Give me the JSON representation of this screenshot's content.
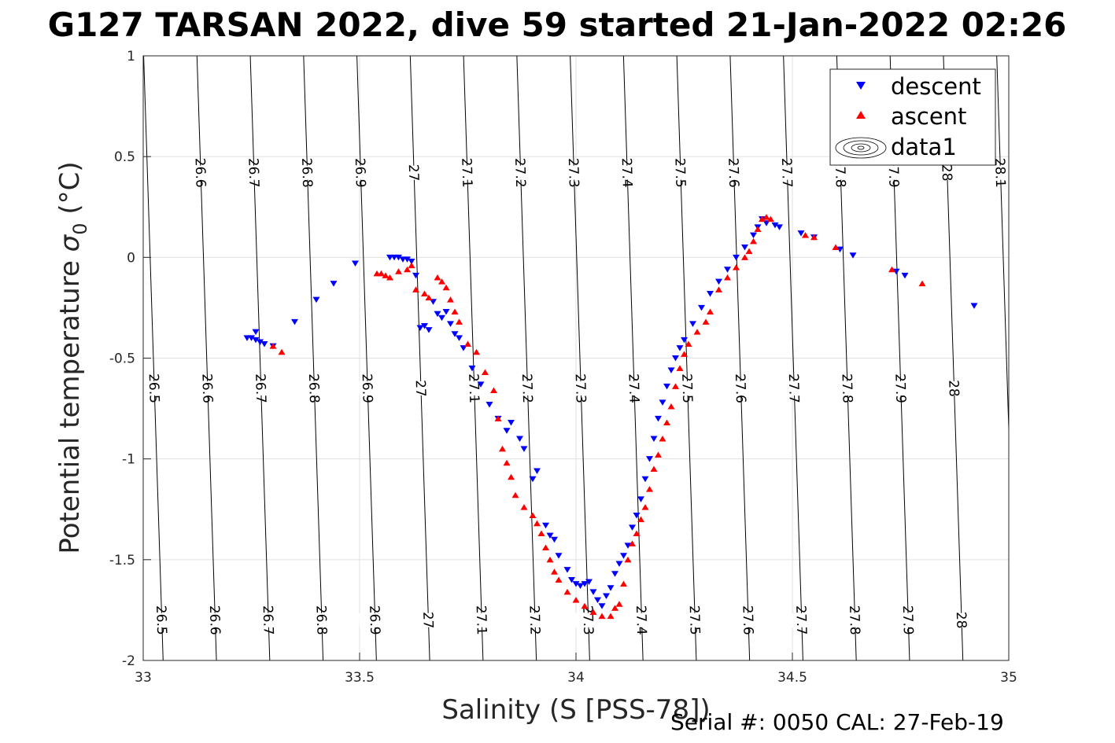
{
  "title": "G127 TARSAN 2022, dive 59 started 21-Jan-2022 02:26",
  "footer": "Serial #: 0050  CAL: 27-Feb-19",
  "chart_data": {
    "type": "scatter",
    "title": "G127 TARSAN 2022, dive 59 started 21-Jan-2022 02:26",
    "xlabel": "Salinity (S [PSS-78])",
    "ylabel_main": "Potential temperature ",
    "ylabel_sym": "σ",
    "ylabel_sub": "0",
    "ylabel_unit": " (°C)",
    "xlim": [
      33,
      35
    ],
    "ylim": [
      -2,
      1
    ],
    "xticks": [
      "33",
      "33.5",
      "34",
      "34.5",
      "35"
    ],
    "yticks": [
      "1",
      "0.5",
      "0",
      "-0.5",
      "-1",
      "-1.5",
      "-2"
    ],
    "grid": true,
    "legend_position": "top-right",
    "legend": [
      "descent",
      "ascent",
      "data1"
    ],
    "colors": {
      "descent": "#0000ff",
      "ascent": "#ff0000",
      "contour": "#000000"
    },
    "contour_levels": [
      "26.5",
      "26.6",
      "26.7",
      "26.8",
      "26.9",
      "27",
      "27.1",
      "27.2",
      "27.3",
      "27.4",
      "27.5",
      "27.6",
      "27.7",
      "27.8",
      "27.9",
      "28",
      "28.1"
    ],
    "series": [
      {
        "name": "descent",
        "marker": "triangle-down",
        "points": [
          [
            33.24,
            -0.4
          ],
          [
            33.25,
            -0.4
          ],
          [
            33.26,
            -0.41
          ],
          [
            33.27,
            -0.42
          ],
          [
            33.26,
            -0.37
          ],
          [
            33.28,
            -0.43
          ],
          [
            33.3,
            -0.44
          ],
          [
            33.35,
            -0.32
          ],
          [
            33.4,
            -0.21
          ],
          [
            33.44,
            -0.13
          ],
          [
            33.49,
            -0.03
          ],
          [
            33.57,
            0.0
          ],
          [
            33.58,
            0.0
          ],
          [
            33.59,
            0.0
          ],
          [
            33.6,
            -0.01
          ],
          [
            33.61,
            -0.01
          ],
          [
            33.62,
            -0.02
          ],
          [
            33.63,
            -0.09
          ],
          [
            33.64,
            -0.35
          ],
          [
            33.65,
            -0.34
          ],
          [
            33.66,
            -0.36
          ],
          [
            33.67,
            -0.22
          ],
          [
            33.68,
            -0.28
          ],
          [
            33.69,
            -0.3
          ],
          [
            33.7,
            -0.27
          ],
          [
            33.71,
            -0.33
          ],
          [
            33.72,
            -0.38
          ],
          [
            33.73,
            -0.4
          ],
          [
            33.74,
            -0.45
          ],
          [
            33.76,
            -0.55
          ],
          [
            33.78,
            -0.63
          ],
          [
            33.8,
            -0.73
          ],
          [
            33.82,
            -0.8
          ],
          [
            33.84,
            -0.86
          ],
          [
            33.85,
            -0.82
          ],
          [
            33.87,
            -0.9
          ],
          [
            33.88,
            -0.95
          ],
          [
            33.9,
            -1.1
          ],
          [
            33.91,
            -1.06
          ],
          [
            33.93,
            -1.33
          ],
          [
            33.94,
            -1.38
          ],
          [
            33.95,
            -1.4
          ],
          [
            33.96,
            -1.48
          ],
          [
            33.98,
            -1.55
          ],
          [
            33.99,
            -1.6
          ],
          [
            34.0,
            -1.62
          ],
          [
            34.01,
            -1.63
          ],
          [
            34.02,
            -1.62
          ],
          [
            34.03,
            -1.61
          ],
          [
            34.04,
            -1.66
          ],
          [
            34.05,
            -1.7
          ],
          [
            34.06,
            -1.73
          ],
          [
            34.07,
            -1.68
          ],
          [
            34.08,
            -1.64
          ],
          [
            34.09,
            -1.57
          ],
          [
            34.1,
            -1.52
          ],
          [
            34.11,
            -1.48
          ],
          [
            34.12,
            -1.43
          ],
          [
            34.13,
            -1.34
          ],
          [
            34.14,
            -1.28
          ],
          [
            34.15,
            -1.2
          ],
          [
            34.16,
            -1.1
          ],
          [
            34.17,
            -1.0
          ],
          [
            34.18,
            -0.9
          ],
          [
            34.19,
            -0.8
          ],
          [
            34.2,
            -0.72
          ],
          [
            34.21,
            -0.64
          ],
          [
            34.22,
            -0.56
          ],
          [
            34.23,
            -0.5
          ],
          [
            34.24,
            -0.45
          ],
          [
            34.25,
            -0.41
          ],
          [
            34.27,
            -0.33
          ],
          [
            34.29,
            -0.25
          ],
          [
            34.31,
            -0.18
          ],
          [
            34.33,
            -0.12
          ],
          [
            34.35,
            -0.06
          ],
          [
            34.37,
            0.0
          ],
          [
            34.39,
            0.05
          ],
          [
            34.41,
            0.11
          ],
          [
            34.42,
            0.15
          ],
          [
            34.43,
            0.19
          ],
          [
            34.44,
            0.17
          ],
          [
            34.46,
            0.16
          ],
          [
            34.47,
            0.15
          ],
          [
            34.52,
            0.12
          ],
          [
            34.55,
            0.1
          ],
          [
            34.61,
            0.04
          ],
          [
            34.64,
            0.01
          ],
          [
            34.74,
            -0.07
          ],
          [
            34.76,
            -0.09
          ],
          [
            34.92,
            -0.24
          ]
        ]
      },
      {
        "name": "ascent",
        "marker": "triangle-up",
        "points": [
          [
            33.3,
            -0.44
          ],
          [
            33.32,
            -0.47
          ],
          [
            33.54,
            -0.08
          ],
          [
            33.55,
            -0.08
          ],
          [
            33.56,
            -0.09
          ],
          [
            33.57,
            -0.1
          ],
          [
            33.59,
            -0.07
          ],
          [
            33.61,
            -0.06
          ],
          [
            33.62,
            -0.04
          ],
          [
            33.63,
            -0.16
          ],
          [
            33.65,
            -0.18
          ],
          [
            33.66,
            -0.2
          ],
          [
            33.68,
            -0.1
          ],
          [
            33.69,
            -0.12
          ],
          [
            33.7,
            -0.15
          ],
          [
            33.71,
            -0.21
          ],
          [
            33.72,
            -0.27
          ],
          [
            33.73,
            -0.32
          ],
          [
            33.75,
            -0.43
          ],
          [
            33.77,
            -0.47
          ],
          [
            33.79,
            -0.57
          ],
          [
            33.81,
            -0.66
          ],
          [
            33.82,
            -0.8
          ],
          [
            33.83,
            -0.95
          ],
          [
            33.84,
            -1.02
          ],
          [
            33.85,
            -1.09
          ],
          [
            33.86,
            -1.18
          ],
          [
            33.88,
            -1.24
          ],
          [
            33.9,
            -1.28
          ],
          [
            33.91,
            -1.32
          ],
          [
            33.92,
            -1.37
          ],
          [
            33.93,
            -1.44
          ],
          [
            33.94,
            -1.5
          ],
          [
            33.95,
            -1.56
          ],
          [
            33.96,
            -1.6
          ],
          [
            33.98,
            -1.66
          ],
          [
            34.0,
            -1.7
          ],
          [
            34.02,
            -1.73
          ],
          [
            34.04,
            -1.76
          ],
          [
            34.06,
            -1.78
          ],
          [
            34.08,
            -1.78
          ],
          [
            34.09,
            -1.74
          ],
          [
            34.1,
            -1.72
          ],
          [
            34.11,
            -1.62
          ],
          [
            34.12,
            -1.5
          ],
          [
            34.13,
            -1.42
          ],
          [
            34.14,
            -1.37
          ],
          [
            34.15,
            -1.3
          ],
          [
            34.16,
            -1.24
          ],
          [
            34.17,
            -1.15
          ],
          [
            34.18,
            -1.05
          ],
          [
            34.19,
            -0.98
          ],
          [
            34.2,
            -0.9
          ],
          [
            34.21,
            -0.82
          ],
          [
            34.22,
            -0.74
          ],
          [
            34.23,
            -0.64
          ],
          [
            34.24,
            -0.55
          ],
          [
            34.25,
            -0.48
          ],
          [
            34.26,
            -0.43
          ],
          [
            34.28,
            -0.37
          ],
          [
            34.3,
            -0.32
          ],
          [
            34.31,
            -0.27
          ],
          [
            34.33,
            -0.16
          ],
          [
            34.35,
            -0.1
          ],
          [
            34.37,
            -0.05
          ],
          [
            34.39,
            0.0
          ],
          [
            34.4,
            0.03
          ],
          [
            34.41,
            0.08
          ],
          [
            34.42,
            0.14
          ],
          [
            34.43,
            0.19
          ],
          [
            34.44,
            0.2
          ],
          [
            34.45,
            0.19
          ],
          [
            34.53,
            0.11
          ],
          [
            34.55,
            0.1
          ],
          [
            34.6,
            0.05
          ],
          [
            34.73,
            -0.06
          ],
          [
            34.8,
            -0.13
          ]
        ]
      }
    ]
  }
}
